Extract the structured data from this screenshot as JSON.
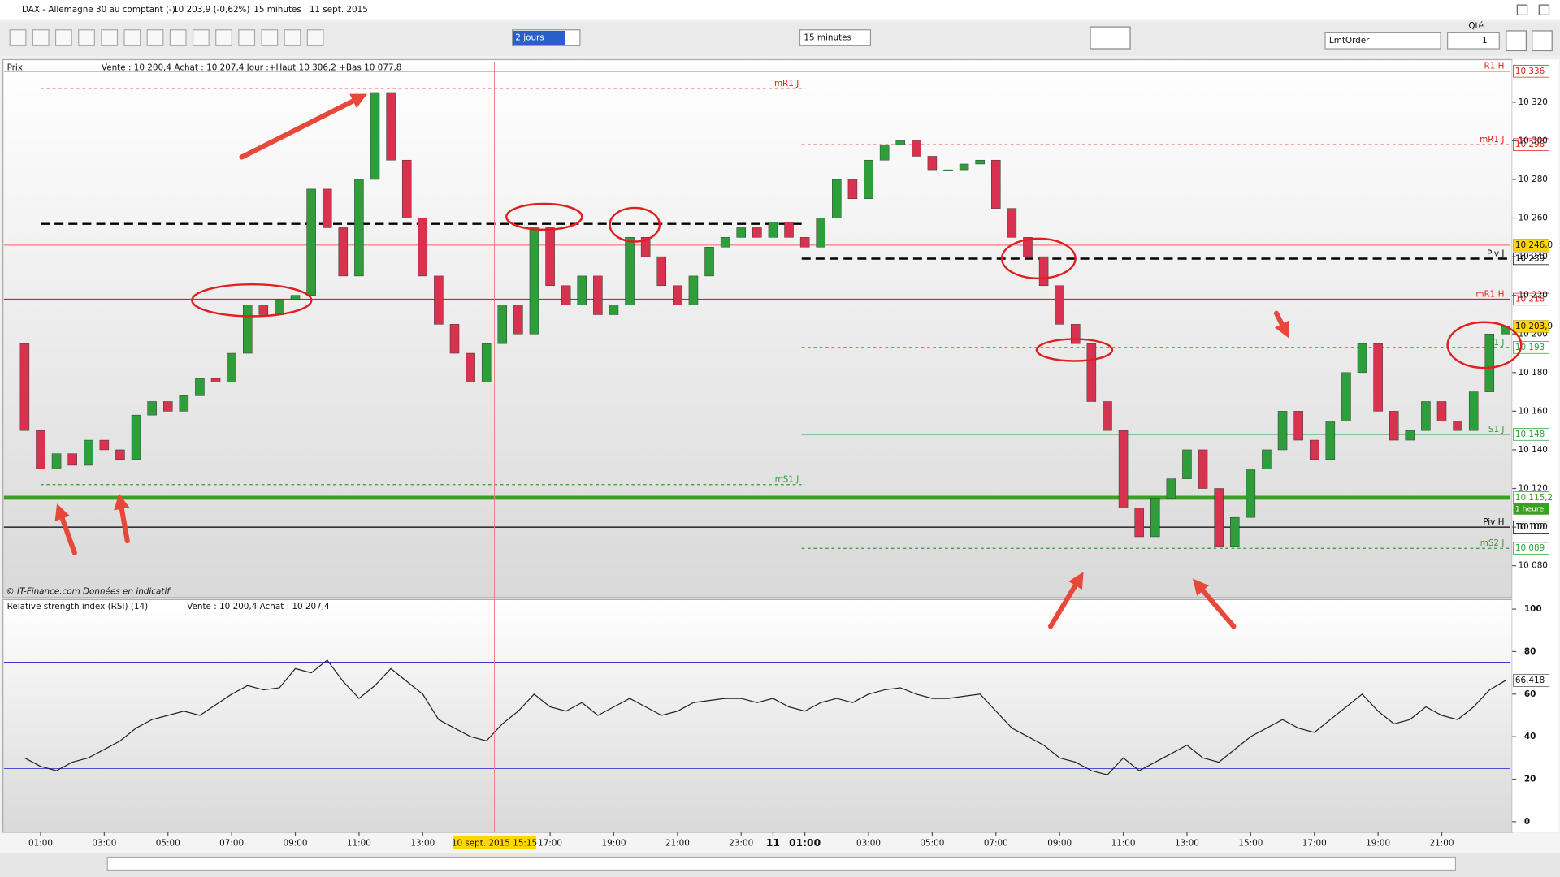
{
  "header": {
    "title": "DAX - Allemagne 30 au comptant (-)",
    "quote": "10 203,9 (-0,62%)",
    "interval": "15 minutes",
    "date": "11 sept. 2015"
  },
  "toolbar": {
    "period": "2 jours",
    "interval": "15 minutes",
    "order_type": "LmtOrder",
    "qty_label": "Qté",
    "qty": "1"
  },
  "chart_data": [
    {
      "type": "candlestick",
      "title": "Prix",
      "subtitle": "Vente : 10 200,4 Achat : 10 207,4 Jour :+Haut 10 306,2 +Bas 10 077,8",
      "source": "© IT-Finance.com Données en indicatif",
      "x": [
        0.5,
        1,
        1.5,
        2,
        2.5,
        3,
        3.5,
        4,
        4.5,
        5,
        5.5,
        6,
        6.5,
        7,
        7.5,
        8,
        8.5,
        9,
        9.5,
        10,
        10.5,
        11,
        11.5,
        12,
        12.5,
        13,
        13.5,
        14,
        14.5,
        15,
        15.5,
        16,
        16.5,
        17,
        17.5,
        18,
        18.5,
        19,
        19.5,
        20,
        20.5,
        21,
        21.5,
        22,
        22.5,
        23,
        23.5,
        24,
        24.5,
        25,
        25.5,
        26,
        26.5,
        27,
        27.5,
        28,
        28.5,
        29,
        29.5,
        30,
        30.5,
        31,
        31.5,
        32,
        32.5,
        33,
        33.5,
        34,
        34.5,
        35,
        35.5,
        36,
        36.5,
        37,
        37.5,
        38,
        38.5,
        39,
        39.5,
        40,
        40.5,
        41,
        41.5,
        42,
        42.5,
        43,
        43.5,
        44,
        44.5,
        45,
        45.5,
        46,
        46.5,
        47
      ],
      "open": [
        10195,
        10150,
        10130,
        10138,
        10132,
        10145,
        10140,
        10135,
        10158,
        10165,
        10160,
        10168,
        10177,
        10175,
        10190,
        10215,
        10210,
        10218,
        10220,
        10275,
        10255,
        10230,
        10280,
        10325,
        10290,
        10260,
        10230,
        10205,
        10190,
        10175,
        10195,
        10215,
        10200,
        10255,
        10225,
        10215,
        10230,
        10210,
        10215,
        10250,
        10240,
        10225,
        10215,
        10230,
        10245,
        10250,
        10255,
        10250,
        10258,
        10250,
        10245,
        10260,
        10280,
        10270,
        10290,
        10298,
        10300,
        10292,
        10285,
        10285,
        10288,
        10290,
        10265,
        10250,
        10240,
        10225,
        10205,
        10195,
        10165,
        10150,
        10110,
        10095,
        10115,
        10125,
        10140,
        10120,
        10090,
        10105,
        10130,
        10140,
        10160,
        10145,
        10135,
        10155,
        10180,
        10195,
        10160,
        10145,
        10150,
        10165,
        10155,
        10150,
        10170,
        10200
      ],
      "close": [
        10150,
        10130,
        10138,
        10132,
        10145,
        10140,
        10135,
        10158,
        10165,
        10160,
        10168,
        10177,
        10175,
        10190,
        10215,
        10210,
        10218,
        10220,
        10275,
        10255,
        10230,
        10280,
        10325,
        10290,
        10260,
        10230,
        10205,
        10190,
        10175,
        10195,
        10215,
        10200,
        10255,
        10225,
        10215,
        10230,
        10210,
        10215,
        10250,
        10240,
        10225,
        10215,
        10230,
        10245,
        10250,
        10255,
        10250,
        10258,
        10250,
        10245,
        10260,
        10280,
        10270,
        10290,
        10298,
        10300,
        10292,
        10285,
        10285,
        10288,
        10290,
        10265,
        10250,
        10240,
        10225,
        10205,
        10195,
        10165,
        10150,
        10110,
        10095,
        10115,
        10125,
        10140,
        10120,
        10090,
        10105,
        10130,
        10140,
        10160,
        10145,
        10135,
        10155,
        10180,
        10195,
        10160,
        10145,
        10150,
        10165,
        10155,
        10150,
        10170,
        10200,
        10203.9
      ],
      "last_label": "10 203,9",
      "up_color": "#2e9e3a",
      "down_color": "#d8324e",
      "xlim": [
        -0.15,
        47.15
      ],
      "ylim": [
        10064,
        10341
      ],
      "xticks": [
        {
          "value": 1,
          "label": "01:00"
        },
        {
          "value": 3,
          "label": "03:00"
        },
        {
          "value": 5,
          "label": "05:00"
        },
        {
          "value": 7,
          "label": "07:00"
        },
        {
          "value": 9,
          "label": "09:00"
        },
        {
          "value": 11,
          "label": "11:00"
        },
        {
          "value": 13,
          "label": "13:00"
        },
        {
          "value": 17,
          "label": "17:00"
        },
        {
          "value": 19,
          "label": "19:00"
        },
        {
          "value": 21,
          "label": "21:00"
        },
        {
          "value": 23,
          "label": "23:00"
        },
        {
          "value": 24,
          "label": "11"
        },
        {
          "value": 25,
          "label": "01:00"
        },
        {
          "value": 27,
          "label": "03:00"
        },
        {
          "value": 29,
          "label": "05:00"
        },
        {
          "value": 31,
          "label": "07:00"
        },
        {
          "value": 33,
          "label": "09:00"
        },
        {
          "value": 35,
          "label": "11:00"
        },
        {
          "value": 37,
          "label": "13:00"
        },
        {
          "value": 39,
          "label": "15:00"
        },
        {
          "value": 41,
          "label": "17:00"
        },
        {
          "value": 43,
          "label": "19:00"
        },
        {
          "value": 45,
          "label": "21:00"
        }
      ],
      "crosshair": {
        "value": 15.25,
        "label": "10 sept. 2015 15:15"
      },
      "yticks": [
        {
          "value": 10080,
          "label": "10 080"
        },
        {
          "value": 10100,
          "label": "10 100"
        },
        {
          "value": 10120,
          "label": "10 120"
        },
        {
          "value": 10140,
          "label": "10 140"
        },
        {
          "value": 10160,
          "label": "10 160"
        },
        {
          "value": 10180,
          "label": "10 180"
        },
        {
          "value": 10200,
          "label": "10 200"
        },
        {
          "value": 10220,
          "label": "10 220"
        },
        {
          "value": 10240,
          "label": "10 240"
        },
        {
          "value": 10260,
          "label": "10 260"
        },
        {
          "value": 10280,
          "label": "10 280"
        },
        {
          "value": 10300,
          "label": "10 300"
        },
        {
          "value": 10320,
          "label": "10 320"
        }
      ],
      "levels": [
        {
          "name": "R1 H",
          "value": 10336,
          "value_label": "10 336",
          "color": "#e02020",
          "dash": false,
          "start": -0.15,
          "end": 47.15
        },
        {
          "name": "mR1 J",
          "value": 10327,
          "color": "#e02020",
          "dash": true,
          "start": 1,
          "end": 25
        },
        {
          "name": "mR1 J",
          "value": 10298,
          "value_label": "10 298",
          "color": "#e02020",
          "dash": true,
          "start": 24.9,
          "end": 47.15
        },
        {
          "value": 10257,
          "color": "#000000",
          "dash": true,
          "thick": true,
          "start": 1,
          "end": 25
        },
        {
          "value": 10246,
          "value_label": "10 246,0",
          "label_fill": "#ffd700",
          "color": "#f08080",
          "dash": false,
          "start": -0.15,
          "end": 47.15
        },
        {
          "name": "Piv J",
          "value": 10239,
          "value_label": "10 239",
          "color": "#000000",
          "dash": true,
          "thick": true,
          "start": 24.9,
          "end": 47.15
        },
        {
          "name": "mR1 H",
          "value": 10218,
          "value_label": "10 218",
          "color": "#e02020",
          "dash": false,
          "start": -0.15,
          "end": 47.15
        },
        {
          "name": "S1 J",
          "value": 10193,
          "value_label": "10 193",
          "color": "#2e9e3a",
          "dash": true,
          "start": 24.9,
          "end": 47.15
        },
        {
          "name": "S1 J",
          "value": 10148,
          "value_label": "10 148",
          "color": "#2e9e3a",
          "dash": false,
          "start": 24.9,
          "end": 47.15
        },
        {
          "name": "mS1 J",
          "value": 10122,
          "color": "#2e9e3a",
          "dash": true,
          "start": 1,
          "end": 25
        },
        {
          "name": "1 heure",
          "name_in_axis": true,
          "value": 10115.2,
          "value_label": "10 115,2",
          "color": "#3aa022",
          "dash": false,
          "thick": true,
          "start": -0.15,
          "end": 47.15
        },
        {
          "name": "Piv H",
          "value": 10100,
          "value_label": "10 100",
          "color": "#000000",
          "dash": false,
          "start": -0.15,
          "end": 47.15
        },
        {
          "name": "mS2 J",
          "value": 10089,
          "value_label": "10 089",
          "color": "#2e9e3a",
          "dash": true,
          "start": 24.9,
          "end": 47.15
        }
      ]
    },
    {
      "type": "line",
      "title": "Relative strength index (RSI) (14)",
      "subtitle": "Vente : 10 200,4 Achat : 10 207,4",
      "x": [
        0.5,
        1,
        1.5,
        2,
        2.5,
        3,
        3.5,
        4,
        4.5,
        5,
        5.5,
        6,
        6.5,
        7,
        7.5,
        8,
        8.5,
        9,
        9.5,
        10,
        10.5,
        11,
        11.5,
        12,
        12.5,
        13,
        13.5,
        14,
        14.5,
        15,
        15.5,
        16,
        16.5,
        17,
        17.5,
        18,
        18.5,
        19,
        19.5,
        20,
        20.5,
        21,
        21.5,
        22,
        22.5,
        23,
        23.5,
        24,
        24.5,
        25,
        25.5,
        26,
        26.5,
        27,
        27.5,
        28,
        28.5,
        29,
        29.5,
        30,
        30.5,
        31,
        31.5,
        32,
        32.5,
        33,
        33.5,
        34,
        34.5,
        35,
        35.5,
        36,
        36.5,
        37,
        37.5,
        38,
        38.5,
        39,
        39.5,
        40,
        40.5,
        41,
        41.5,
        42,
        42.5,
        43,
        43.5,
        44,
        44.5,
        45,
        45.5,
        46,
        46.5,
        47
      ],
      "values": [
        30,
        26,
        24,
        28,
        30,
        34,
        38,
        44,
        48,
        50,
        52,
        50,
        55,
        60,
        64,
        62,
        63,
        72,
        70,
        76,
        66,
        58,
        64,
        72,
        66,
        60,
        48,
        44,
        40,
        38,
        46,
        52,
        60,
        54,
        52,
        56,
        50,
        54,
        58,
        54,
        50,
        52,
        56,
        57,
        58,
        58,
        56,
        58,
        54,
        52,
        56,
        58,
        56,
        60,
        62,
        63,
        60,
        58,
        58,
        59,
        60,
        52,
        44,
        40,
        36,
        30,
        28,
        24,
        22,
        30,
        24,
        28,
        32,
        36,
        30,
        28,
        34,
        40,
        44,
        48,
        44,
        42,
        48,
        54,
        60,
        52,
        46,
        48,
        54,
        50,
        48,
        54,
        62,
        66.418
      ],
      "last_label": "66,418",
      "color": "#222222",
      "band_color": "#3a3ad0",
      "bands": [
        25,
        75
      ],
      "xlim": [
        -0.15,
        47.15
      ],
      "ylim": [
        -4.5,
        104
      ],
      "yticks": [
        0,
        20,
        40,
        60,
        80,
        100
      ]
    }
  ]
}
